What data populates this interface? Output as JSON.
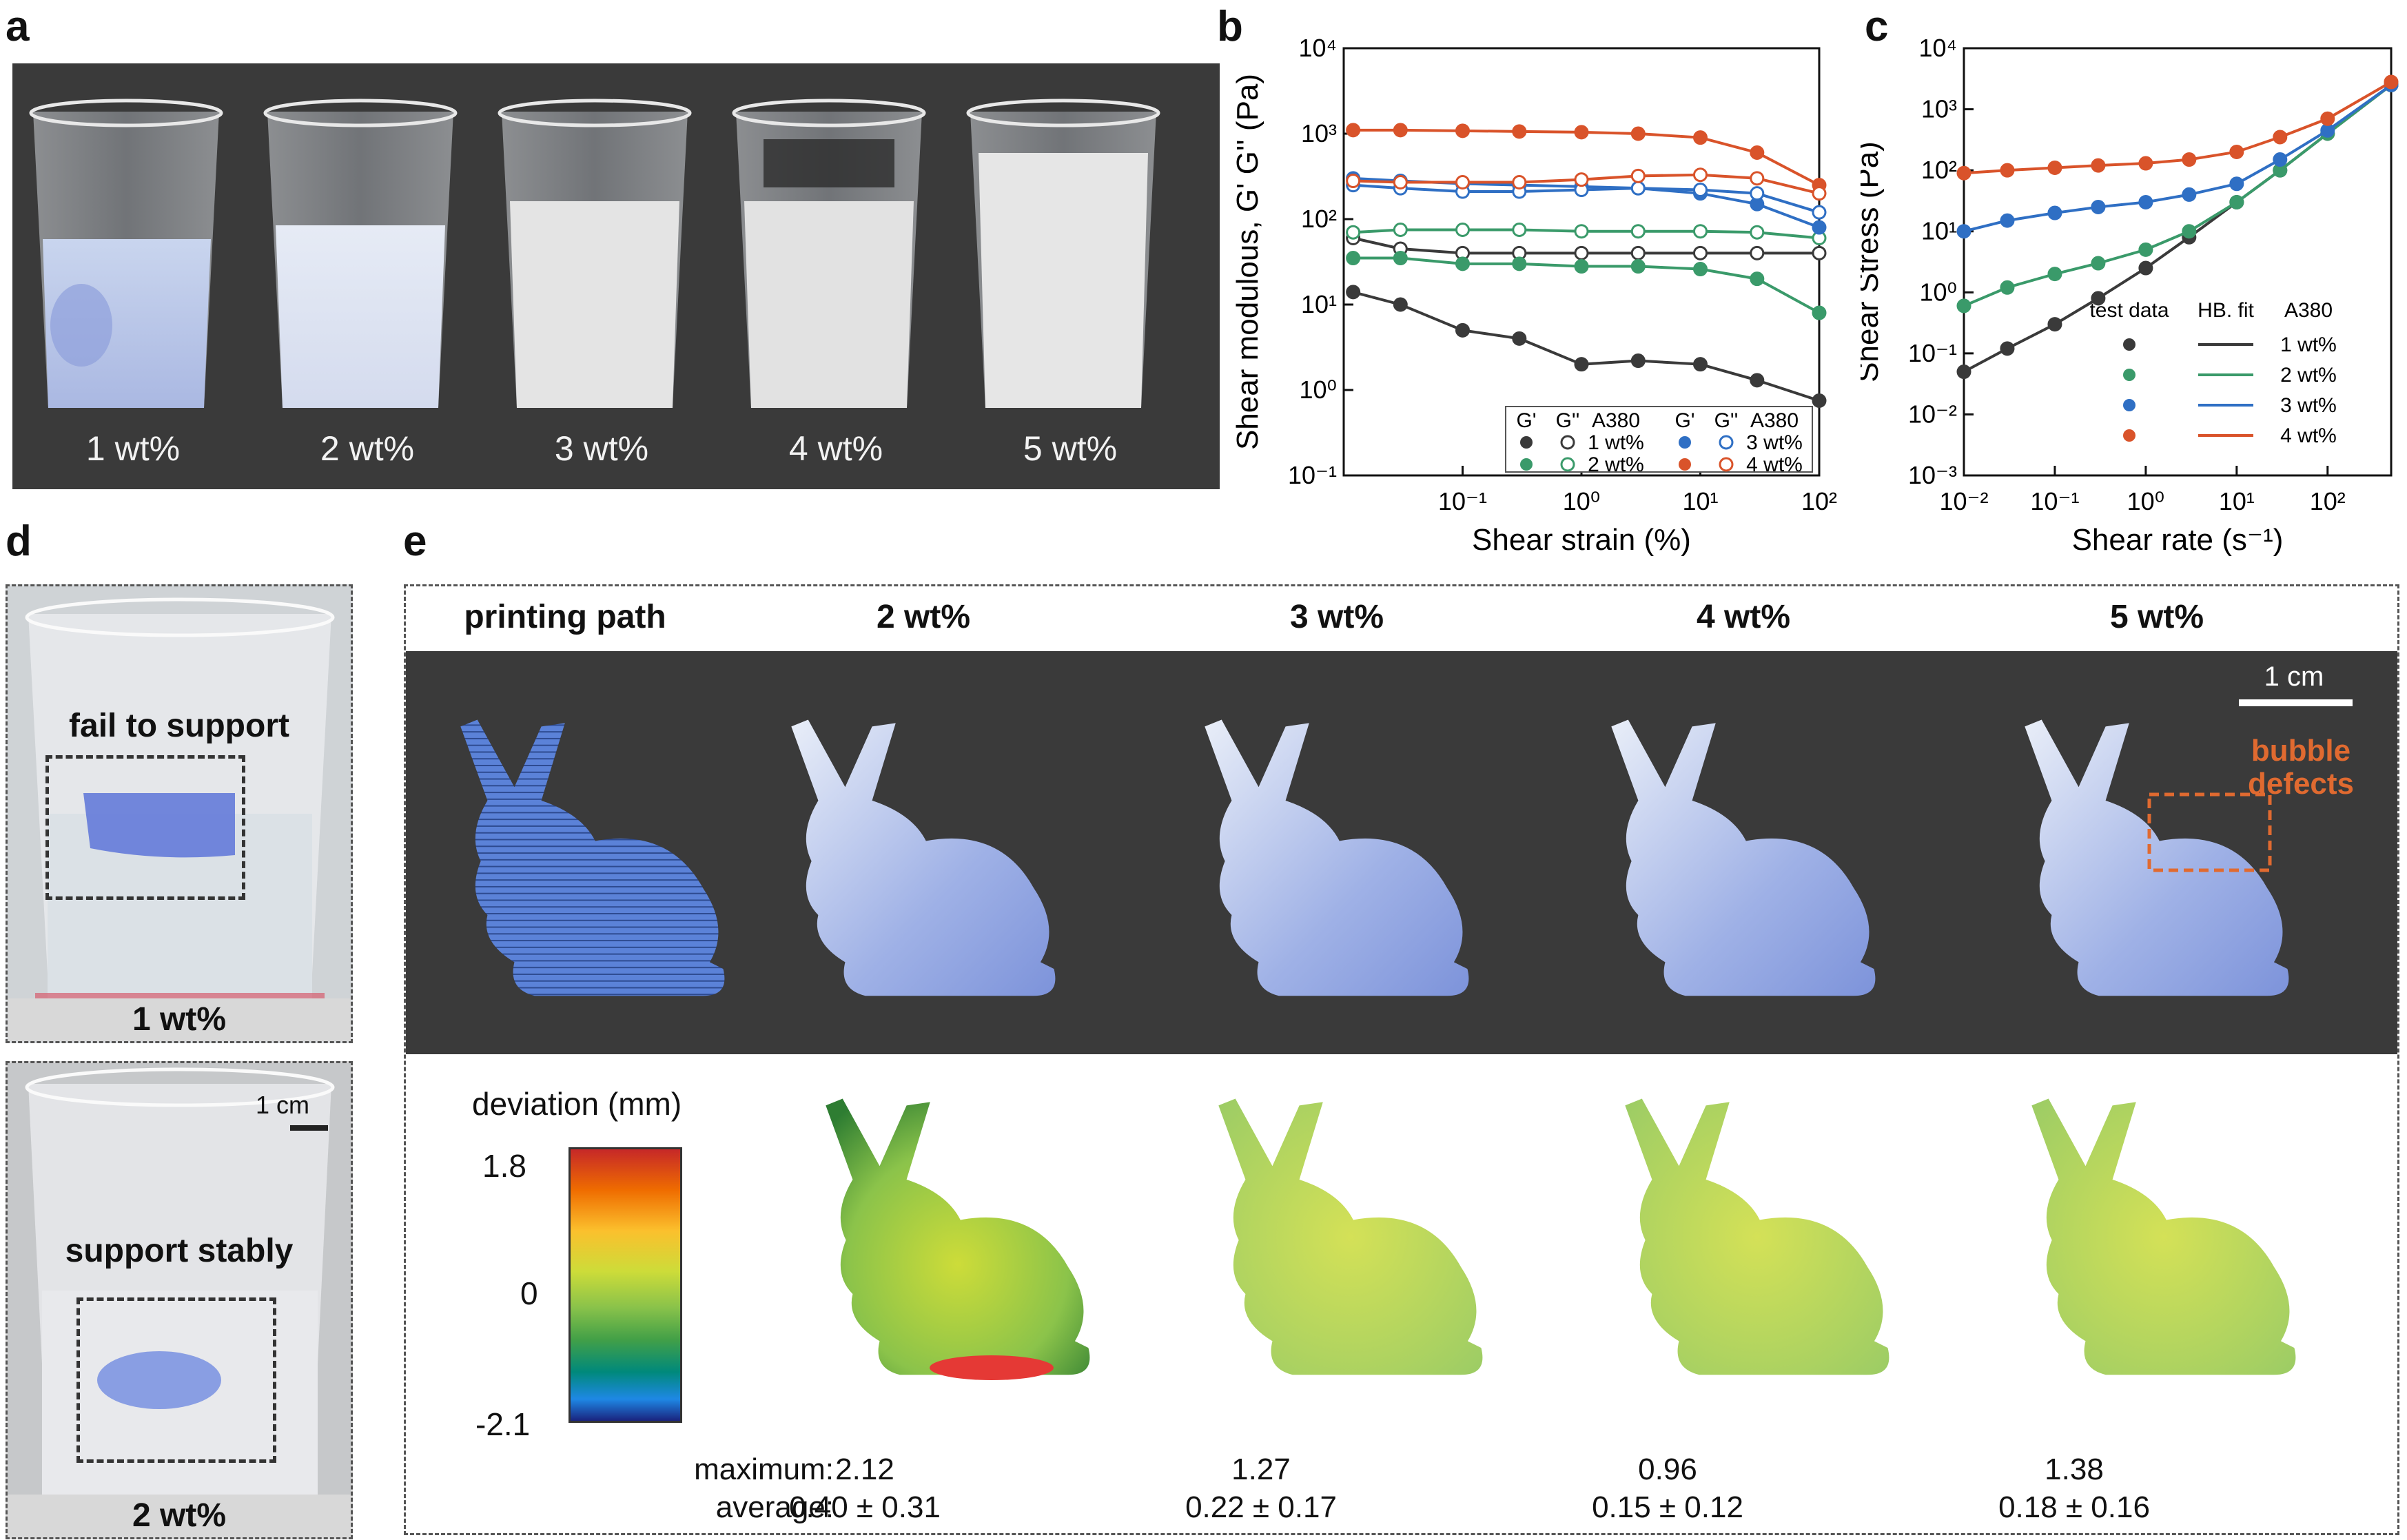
{
  "panels": {
    "a": {
      "letter": "a",
      "cups": [
        {
          "label": "1 wt%"
        },
        {
          "label": "2 wt%"
        },
        {
          "label": "3 wt%"
        },
        {
          "label": "4 wt%"
        },
        {
          "label": "5 wt%"
        }
      ]
    },
    "b": {
      "letter": "b"
    },
    "c": {
      "letter": "c"
    },
    "d": {
      "letter": "d",
      "top_caption": "fail to support",
      "top_label": "1 wt%",
      "bottom_caption": "support stably",
      "bottom_label": "2 wt%",
      "scale": "1 cm"
    },
    "e": {
      "letter": "e",
      "headers": [
        "printing path",
        "2 wt%",
        "3 wt%",
        "4 wt%",
        "5 wt%"
      ],
      "scale": "1 cm",
      "defect_note_line1": "bubble",
      "defect_note_line2": "defects",
      "colorbar": {
        "title": "deviation (mm)",
        "max": "1.8",
        "mid": "0",
        "min": "-2.1"
      },
      "row_labels": {
        "maximum": "maximum:",
        "average": "average:"
      },
      "stats": [
        {
          "maximum": "2.12",
          "average": "0.40 ± 0.31"
        },
        {
          "maximum": "1.27",
          "average": "0.22 ± 0.17"
        },
        {
          "maximum": "0.96",
          "average": "0.15 ± 0.12"
        },
        {
          "maximum": "1.38",
          "average": "0.18 ± 0.16"
        }
      ]
    }
  },
  "colors": {
    "dark_panel": "#3a3a3a",
    "c1": "#3a3a3a",
    "c2": "#3a9a6a",
    "c3": "#2f6fc4",
    "c4": "#d9532a",
    "defect": "#e06a30",
    "bunny_path": "#5b82d8"
  },
  "chart_data": [
    {
      "type": "line",
      "panel": "b",
      "xlabel": "Shear strain (%)",
      "ylabel": "Shear modulous, G' G'' (Pa)",
      "xscale": "log",
      "yscale": "log",
      "xlim": [
        0.01,
        100
      ],
      "ylim": [
        0.1,
        10000
      ],
      "xticks": [
        "10⁻¹",
        "10⁰",
        "10¹",
        "10²"
      ],
      "yticks": [
        "10⁻¹",
        "10⁰",
        "10¹",
        "10²",
        "10³",
        "10⁴"
      ],
      "legend": {
        "placement": "bottom-right",
        "headers": [
          "G'",
          "G''",
          "A380",
          "G'",
          "G''",
          "A380"
        ],
        "entries": [
          "1 wt%",
          "2 wt%",
          "3 wt%",
          "4 wt%"
        ]
      },
      "x": [
        0.012,
        0.03,
        0.1,
        0.3,
        1,
        3,
        10,
        30,
        100
      ],
      "series": [
        {
          "name": "1 wt%",
          "modulus": "G'",
          "values": [
            14,
            10,
            5,
            4,
            2,
            2.2,
            2,
            1.3,
            0.75
          ]
        },
        {
          "name": "1 wt%",
          "modulus": "G''",
          "values": [
            60,
            45,
            40,
            40,
            40,
            40,
            40,
            40,
            40
          ]
        },
        {
          "name": "2 wt%",
          "modulus": "G'",
          "values": [
            35,
            35,
            30,
            30,
            28,
            28,
            26,
            20,
            8
          ]
        },
        {
          "name": "2 wt%",
          "modulus": "G''",
          "values": [
            70,
            75,
            75,
            75,
            72,
            72,
            72,
            70,
            60
          ]
        },
        {
          "name": "3 wt%",
          "modulus": "G'",
          "values": [
            300,
            280,
            260,
            250,
            240,
            230,
            200,
            150,
            80
          ]
        },
        {
          "name": "3 wt%",
          "modulus": "G''",
          "values": [
            250,
            230,
            210,
            210,
            220,
            230,
            220,
            200,
            120
          ]
        },
        {
          "name": "4 wt%",
          "modulus": "G'",
          "values": [
            1100,
            1100,
            1080,
            1060,
            1040,
            1000,
            900,
            600,
            250
          ]
        },
        {
          "name": "4 wt%",
          "modulus": "G''",
          "values": [
            280,
            270,
            270,
            270,
            290,
            320,
            330,
            300,
            200
          ]
        }
      ]
    },
    {
      "type": "line",
      "panel": "c",
      "xlabel": "Shear rate (s⁻¹)",
      "ylabel": "Shear Stress (Pa)",
      "xscale": "log",
      "yscale": "log",
      "xlim": [
        0.01,
        500
      ],
      "ylim": [
        0.001,
        10000
      ],
      "xticks": [
        "10⁻²",
        "10⁻¹",
        "10⁰",
        "10¹",
        "10²"
      ],
      "yticks": [
        "10⁻³",
        "10⁻²",
        "10⁻¹",
        "10⁰",
        "10¹",
        "10²",
        "10³",
        "10⁴"
      ],
      "legend": {
        "placement": "bottom-right",
        "headers": [
          "test data",
          "HB. fit",
          "A380"
        ],
        "entries": [
          "1 wt%",
          "2 wt%",
          "3 wt%",
          "4 wt%"
        ]
      },
      "x": [
        0.01,
        0.03,
        0.1,
        0.3,
        1,
        3,
        10,
        30,
        100,
        500
      ],
      "series": [
        {
          "name": "1 wt%",
          "values": [
            0.05,
            0.12,
            0.3,
            0.8,
            2.5,
            8,
            30,
            100,
            400,
            2500
          ]
        },
        {
          "name": "2 wt%",
          "values": [
            0.6,
            1.2,
            2,
            3,
            5,
            10,
            30,
            100,
            400,
            2500
          ]
        },
        {
          "name": "3 wt%",
          "values": [
            10,
            15,
            20,
            25,
            30,
            40,
            60,
            150,
            450,
            2500
          ]
        },
        {
          "name": "4 wt%",
          "values": [
            90,
            100,
            110,
            120,
            130,
            150,
            200,
            350,
            700,
            2800
          ]
        }
      ]
    }
  ]
}
